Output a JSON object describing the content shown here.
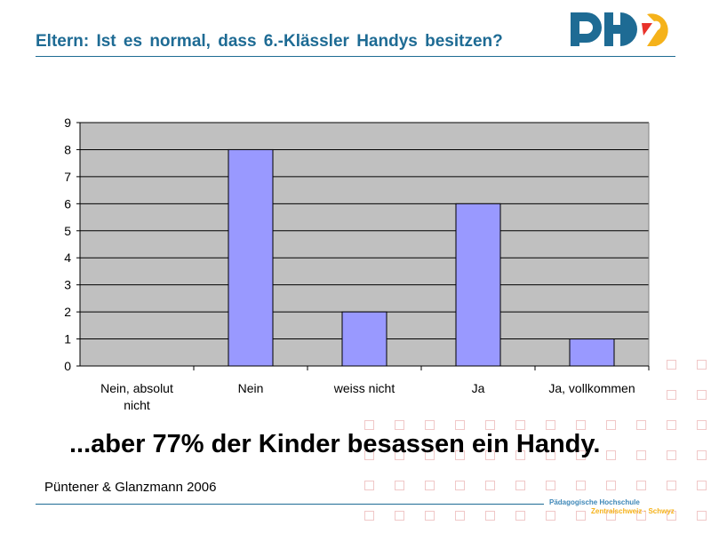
{
  "slide": {
    "title": "Eltern: Ist es normal, dass 6.-Klässler Handys besitzen?",
    "tagline": "...aber 77% der Kinder besassen ein Handy.",
    "source": "Püntener & Glanzmann 2006",
    "institution_line1": "Pädagogische Hochschule",
    "institution_line2": "Zentralschweiz · Schwyz",
    "logo_text": "PHZ",
    "colors": {
      "title": "#1e6b94",
      "logo_blue": "#1e6b94",
      "logo_yellow": "#f5b21a",
      "logo_red": "#e8322a"
    }
  },
  "chart_data": {
    "type": "bar",
    "categories": [
      "Nein, absolut nicht",
      "Nein",
      "weiss nicht",
      "Ja",
      "Ja, vollkommen"
    ],
    "values": [
      0,
      8,
      2,
      6,
      1
    ],
    "ylim": [
      0,
      9
    ],
    "yticks": [
      0,
      1,
      2,
      3,
      4,
      5,
      6,
      7,
      8,
      9
    ],
    "grid": true,
    "legend": "none",
    "colors": {
      "bar": "#9999ff",
      "plot_bg": "#c0c0c0"
    }
  }
}
